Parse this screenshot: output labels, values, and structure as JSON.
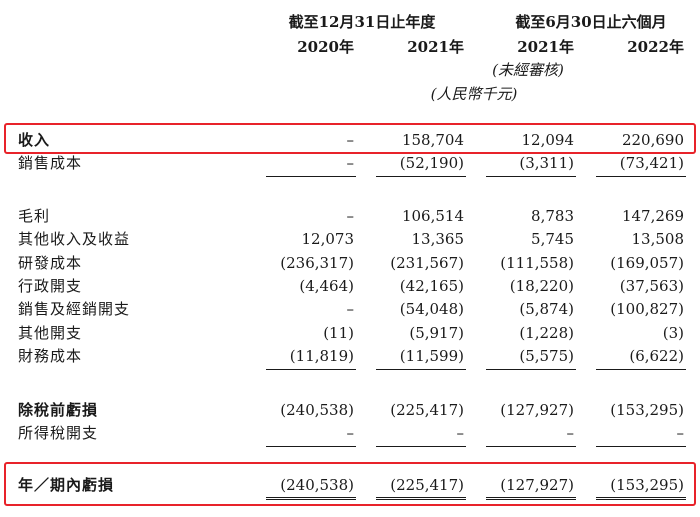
{
  "header": {
    "group_year": "截至12月31日止年度",
    "group_six_months": "截至6月30日止六個月",
    "years": [
      "2020年",
      "2021年",
      "2021年",
      "2022年"
    ],
    "unaudited": "(未經審核)",
    "unit": "(人民幣千元)"
  },
  "rows": [
    {
      "label": "收入",
      "values": [
        "–",
        "158,704",
        "12,094",
        "220,690"
      ]
    },
    {
      "label": "銷售成本",
      "values": [
        "–",
        "(52,190)",
        "(3,311)",
        "(73,421)"
      ]
    },
    {
      "label": "毛利",
      "values": [
        "–",
        "106,514",
        "8,783",
        "147,269"
      ]
    },
    {
      "label": "其他收入及收益",
      "values": [
        "12,073",
        "13,365",
        "5,745",
        "13,508"
      ]
    },
    {
      "label": "研發成本",
      "values": [
        "(236,317)",
        "(231,567)",
        "(111,558)",
        "(169,057)"
      ]
    },
    {
      "label": "行政開支",
      "values": [
        "(4,464)",
        "(42,165)",
        "(18,220)",
        "(37,563)"
      ]
    },
    {
      "label": "銷售及經銷開支",
      "values": [
        "–",
        "(54,048)",
        "(5,874)",
        "(100,827)"
      ]
    },
    {
      "label": "其他開支",
      "values": [
        "(11)",
        "(5,917)",
        "(1,228)",
        "(3)"
      ]
    },
    {
      "label": "財務成本",
      "values": [
        "(11,819)",
        "(11,599)",
        "(5,575)",
        "(6,622)"
      ]
    },
    {
      "label": "除稅前虧損",
      "values": [
        "(240,538)",
        "(225,417)",
        "(127,927)",
        "(153,295)"
      ]
    },
    {
      "label": "所得稅開支",
      "values": [
        "–",
        "–",
        "–",
        "–"
      ]
    },
    {
      "label": "年／期內虧損",
      "values": [
        "(240,538)",
        "(225,417)",
        "(127,927)",
        "(153,295)"
      ]
    }
  ],
  "highlight_color": "#e8232a"
}
